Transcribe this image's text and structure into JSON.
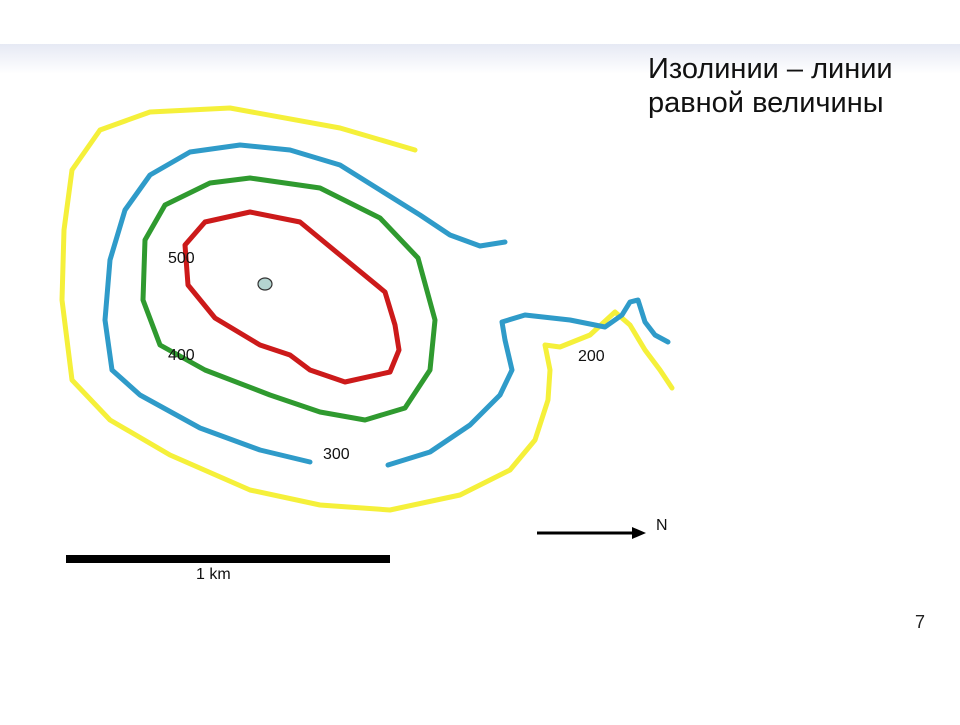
{
  "title": [
    "Изолинии – линии",
    "равной величины"
  ],
  "contour_labels": [
    "500",
    "400",
    "300",
    "200"
  ],
  "scale_label": "1 km",
  "north_label": "N",
  "page_number": "7"
}
